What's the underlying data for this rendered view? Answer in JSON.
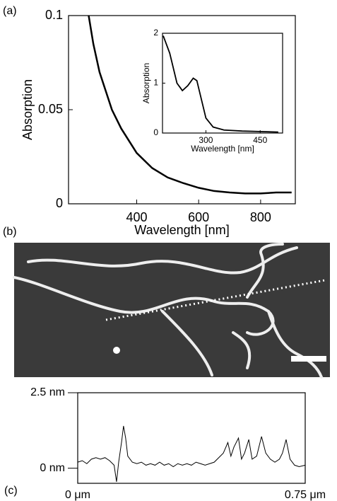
{
  "panel_labels": [
    "(a)",
    "(b)",
    "(c)"
  ],
  "chart_data": [
    {
      "type": "line",
      "xlabel": "Wavelength [nm]",
      "ylabel": "Absorption",
      "color": "#000000",
      "xlim": [
        180,
        912
      ],
      "ylim": [
        0,
        0.1
      ],
      "xticks": [
        400,
        600,
        800
      ],
      "yticks": [
        0,
        0.05,
        0.1
      ],
      "x": [
        245,
        260,
        280,
        300,
        320,
        350,
        400,
        450,
        500,
        550,
        600,
        650,
        700,
        750,
        800,
        850,
        900
      ],
      "values": [
        0.1,
        0.085,
        0.07,
        0.06,
        0.05,
        0.04,
        0.027,
        0.019,
        0.014,
        0.011,
        0.0085,
        0.0068,
        0.006,
        0.0055,
        0.0055,
        0.006,
        0.006
      ]
    },
    {
      "type": "line",
      "xlabel": "Wavelength [nm]",
      "ylabel": "Absorption",
      "color": "#000000",
      "xlim": [
        180,
        512
      ],
      "ylim": [
        0,
        2
      ],
      "xticks": [
        300,
        450
      ],
      "yticks": [
        0,
        1,
        2
      ],
      "x": [
        182,
        200,
        220,
        235,
        250,
        265,
        275,
        290,
        300,
        320,
        350,
        400,
        450,
        500
      ],
      "values": [
        1.95,
        1.6,
        1.0,
        0.85,
        0.95,
        1.1,
        1.05,
        0.6,
        0.3,
        0.12,
        0.06,
        0.04,
        0.03,
        0.02
      ]
    },
    {
      "type": "line",
      "color": "#000000",
      "xlim": [
        0,
        0.75
      ],
      "ylim": [
        -0.5,
        2.5
      ],
      "xticks": [
        {
          "value": 0,
          "label": "0 μm"
        },
        {
          "value": 0.75,
          "label": "0.75 μm"
        }
      ],
      "yticks": [
        {
          "value": 0,
          "label": "0 nm"
        },
        {
          "value": 2.5,
          "label": "2.5 nm"
        }
      ],
      "x": [
        0,
        0.015,
        0.03,
        0.045,
        0.06,
        0.075,
        0.09,
        0.105,
        0.12,
        0.128,
        0.135,
        0.145,
        0.151,
        0.158,
        0.165,
        0.18,
        0.195,
        0.21,
        0.225,
        0.24,
        0.255,
        0.27,
        0.285,
        0.3,
        0.315,
        0.33,
        0.345,
        0.36,
        0.375,
        0.39,
        0.405,
        0.42,
        0.435,
        0.45,
        0.465,
        0.48,
        0.495,
        0.505,
        0.515,
        0.53,
        0.54,
        0.55,
        0.564,
        0.575,
        0.59,
        0.606,
        0.62,
        0.635,
        0.65,
        0.665,
        0.675,
        0.687,
        0.7,
        0.715,
        0.73,
        0.75
      ],
      "values": [
        0.2,
        0.25,
        0.15,
        0.3,
        0.35,
        0.3,
        0.35,
        0.25,
        0.1,
        -0.45,
        0.2,
        0.9,
        1.4,
        1.0,
        0.4,
        0.2,
        0.15,
        0.2,
        0.1,
        0.15,
        0.1,
        0.2,
        0.1,
        0.15,
        0.05,
        0.15,
        0.1,
        0.15,
        0.1,
        0.2,
        0.15,
        0.1,
        0.15,
        0.2,
        0.35,
        0.5,
        0.85,
        0.4,
        0.7,
        1.0,
        0.3,
        0.5,
        0.95,
        0.3,
        0.4,
        1.05,
        0.5,
        0.3,
        0.2,
        0.3,
        0.5,
        0.95,
        0.3,
        0.1,
        0.05,
        0.1
      ]
    }
  ]
}
